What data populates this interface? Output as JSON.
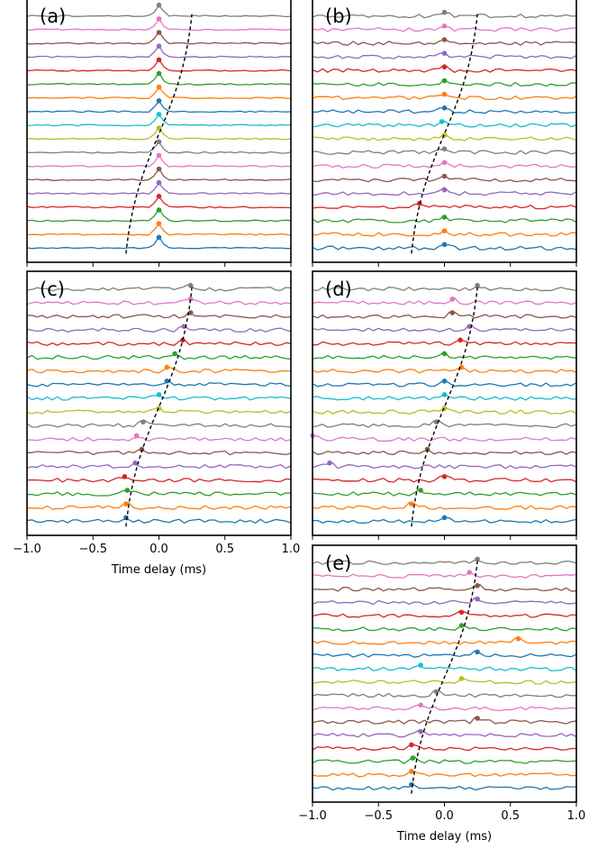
{
  "colors": [
    "#1f77b4",
    "#ff7f0e",
    "#2ca02c",
    "#d62728",
    "#9467bd",
    "#8c564b",
    "#e377c2",
    "#7f7f7f",
    "#bcbd22",
    "#17becf"
  ],
  "chart_data": [
    {
      "type": "line",
      "panel_label": "(a)",
      "xlim": [
        -1.0,
        1.0
      ],
      "xticks": [
        "−1.0",
        "−0.5",
        "0.0",
        "0.5",
        "1.0"
      ],
      "show_tick_labels": false,
      "xlabel": "",
      "n_traces": 18,
      "peak_delays": [
        0,
        0,
        0,
        0,
        0,
        0,
        0,
        0,
        0,
        0,
        0,
        0,
        0,
        0,
        0,
        0,
        0,
        0
      ],
      "guide_curve": {
        "x_start": -0.25,
        "x_end": 0.25
      }
    },
    {
      "type": "line",
      "panel_label": "(b)",
      "xlim": [
        -1.0,
        1.0
      ],
      "xticks": [
        "−1.0",
        "−0.5",
        "0.0",
        "0.5",
        "1.0"
      ],
      "show_tick_labels": false,
      "xlabel": "",
      "n_traces": 18,
      "peak_delays": [
        0,
        0,
        0,
        -0.19,
        0,
        0,
        0,
        0,
        0,
        -0.02,
        0,
        0,
        0,
        0,
        0,
        0,
        0,
        0
      ],
      "guide_curve": {
        "x_start": -0.25,
        "x_end": 0.25
      }
    },
    {
      "type": "line",
      "panel_label": "(c)",
      "xlim": [
        -1.0,
        1.0
      ],
      "xticks": [
        "−1.0",
        "−0.5",
        "0.0",
        "0.5",
        "1.0"
      ],
      "show_tick_labels": true,
      "xlabel": "Time delay (ms)",
      "n_traces": 18,
      "peak_delays": [
        -0.25,
        -0.25,
        -0.24,
        -0.26,
        -0.18,
        -0.13,
        -0.17,
        -0.12,
        0.0,
        0.0,
        0.06,
        0.06,
        0.12,
        0.18,
        0.19,
        0.24,
        0.24,
        0.24
      ],
      "guide_curve": {
        "x_start": -0.25,
        "x_end": 0.25
      }
    },
    {
      "type": "line",
      "panel_label": "(d)",
      "xlim": [
        -1.0,
        1.0
      ],
      "xticks": [
        "−1.0",
        "−0.5",
        "0.0",
        "0.5",
        "1.0"
      ],
      "show_tick_labels": false,
      "xlabel": "",
      "n_traces": 18,
      "peak_delays": [
        0.0,
        -0.25,
        -0.18,
        0.0,
        -0.87,
        -0.13,
        -1.0,
        -0.06,
        0.0,
        0.0,
        0.0,
        0.13,
        0.0,
        0.12,
        0.19,
        0.06,
        0.06,
        0.25
      ],
      "guide_curve": {
        "x_start": -0.25,
        "x_end": 0.25
      }
    },
    {
      "type": "line",
      "panel_label": "(e)",
      "xlim": [
        -1.0,
        1.0
      ],
      "xticks": [
        "−1.0",
        "−0.5",
        "0.0",
        "0.5",
        "1.0"
      ],
      "show_tick_labels": true,
      "xlabel": "Time delay (ms)",
      "n_traces": 18,
      "peak_delays": [
        -0.25,
        -0.25,
        -0.24,
        -0.25,
        -0.18,
        0.25,
        -0.18,
        -0.06,
        0.13,
        -0.18,
        0.25,
        0.56,
        0.13,
        0.13,
        0.25,
        0.25,
        0.19,
        0.25
      ],
      "guide_curve": {
        "x_start": -0.25,
        "x_end": 0.25
      }
    }
  ]
}
